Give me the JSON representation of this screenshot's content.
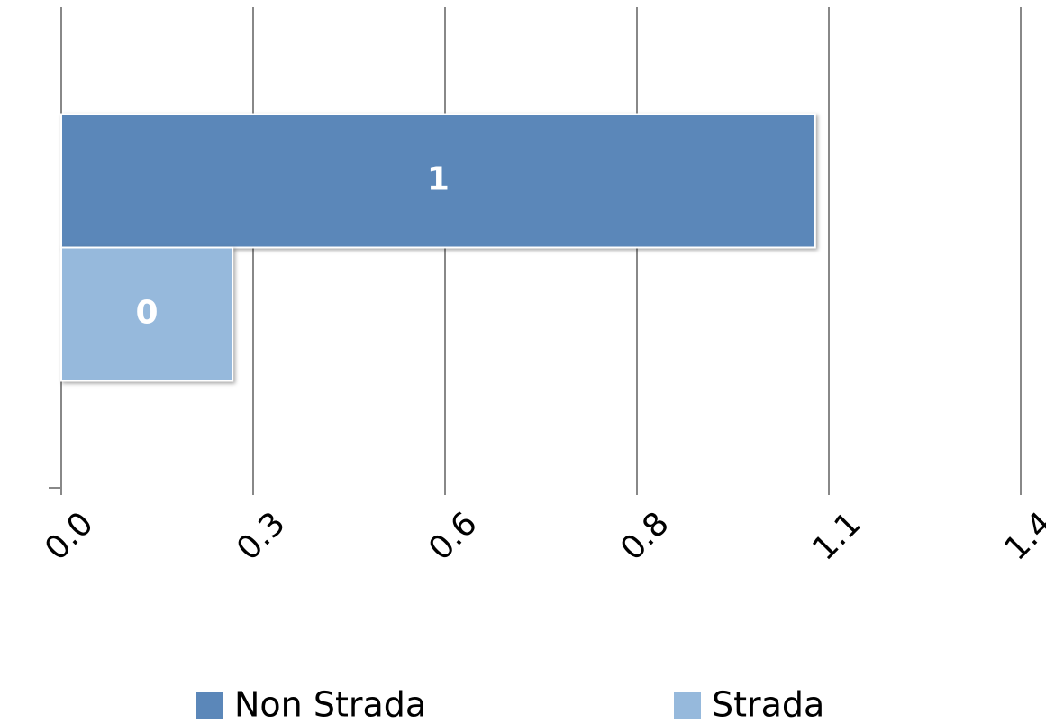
{
  "chart_data": {
    "type": "bar",
    "orientation": "horizontal",
    "categories": [
      null
    ],
    "series": [
      {
        "name": "Non Strada",
        "color": "#5b87b9",
        "values": [
          1.1
        ],
        "value_labels": [
          "1"
        ]
      },
      {
        "name": "Strada",
        "color": "#96b9dc",
        "values": [
          0.25
        ],
        "value_labels": [
          "0"
        ]
      }
    ],
    "xlim": [
      0,
      1.4
    ],
    "xticks": [
      {
        "value": 0,
        "label": "0.0"
      },
      {
        "value": 0.28,
        "label": "0.3"
      },
      {
        "value": 0.56,
        "label": "0.6"
      },
      {
        "value": 0.84,
        "label": "0.8"
      },
      {
        "value": 1.12,
        "label": "1.1"
      },
      1.4
    ],
    "grid": true,
    "legend": "bottom"
  }
}
